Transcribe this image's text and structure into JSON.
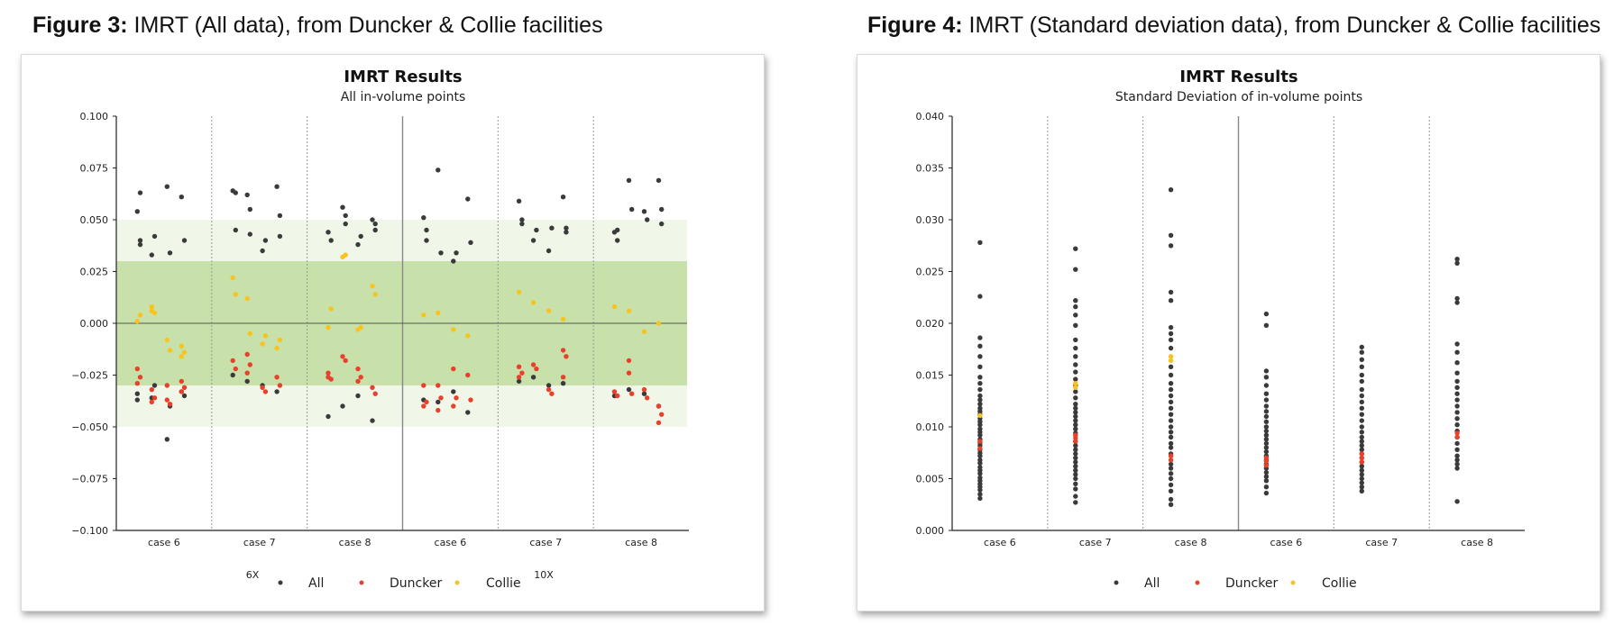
{
  "figures": [
    {
      "caption_label": "Figure 3:",
      "caption_text": " IMRT (All data), from Duncker & Collie facilities",
      "chart_data": {
        "type": "scatter",
        "title": "IMRT Results",
        "subtitle": "All in-volume points",
        "ylim": [
          -0.1,
          0.1
        ],
        "yticks": [
          -0.1,
          -0.075,
          -0.05,
          -0.025,
          0.0,
          0.025,
          0.05,
          0.075,
          0.1
        ],
        "ytick_labels": [
          "−0.100",
          "−0.075",
          "−0.050",
          "−0.025",
          "0.000",
          "0.025",
          "0.050",
          "0.075",
          "0.100"
        ],
        "categories": [
          "case 6",
          "case 7",
          "case 8",
          "case 6",
          "case 7",
          "case 8"
        ],
        "groups": [
          "6X",
          "10X"
        ],
        "bands": [
          {
            "from": -0.05,
            "to": 0.05,
            "color": "#f0f7e8"
          },
          {
            "from": -0.03,
            "to": 0.03,
            "color": "#c8e1ab"
          }
        ],
        "zero_line": true,
        "legend": [
          {
            "name": "All",
            "color": "#3a3a3a"
          },
          {
            "name": "Duncker",
            "color": "#e8402a"
          },
          {
            "name": "Collie",
            "color": "#f8c31e"
          }
        ],
        "cases": [
          {
            "all": [
              [
                -0.034,
                0.04,
                0.054,
                0.063,
                -0.037,
                0.038
              ],
              [
                -0.036,
                0.042,
                0.033,
                -0.03
              ],
              [
                -0.056,
                0.034,
                0.066,
                -0.04
              ],
              [
                -0.033,
                0.04,
                0.061,
                -0.035
              ]
            ],
            "duncker": [
              [
                -0.022,
                -0.026,
                -0.029
              ],
              [
                -0.032,
                -0.036,
                -0.038
              ],
              [
                -0.037,
                -0.039,
                -0.03
              ],
              [
                -0.028,
                -0.031,
                -0.033
              ]
            ],
            "collie": [
              [
                0.001,
                0.004
              ],
              [
                0.006,
                0.005,
                0.008
              ],
              [
                -0.008,
                -0.013
              ],
              [
                -0.011,
                -0.014,
                -0.016
              ]
            ]
          },
          {
            "all": [
              [
                -0.025,
                0.045,
                0.064,
                0.063
              ],
              [
                -0.028,
                0.043,
                0.062,
                0.055
              ],
              [
                -0.03,
                0.04,
                0.035
              ],
              [
                -0.033,
                0.042,
                0.066,
                0.052
              ]
            ],
            "duncker": [
              [
                -0.018,
                -0.022
              ],
              [
                -0.015,
                -0.02,
                -0.024
              ],
              [
                -0.031,
                -0.033
              ],
              [
                -0.026,
                -0.03
              ]
            ],
            "collie": [
              [
                0.022,
                0.014
              ],
              [
                0.012,
                -0.005
              ],
              [
                -0.01,
                -0.006
              ],
              [
                -0.012,
                -0.008
              ]
            ]
          },
          {
            "all": [
              [
                -0.045,
                0.04,
                0.044
              ],
              [
                -0.04,
                0.048,
                0.056,
                0.052
              ],
              [
                -0.035,
                0.042,
                0.038
              ],
              [
                -0.047,
                0.045,
                0.05,
                0.048
              ]
            ],
            "duncker": [
              [
                -0.024,
                -0.027,
                -0.026
              ],
              [
                -0.016,
                -0.018
              ],
              [
                -0.022,
                -0.026,
                -0.028
              ],
              [
                -0.031,
                -0.034
              ]
            ],
            "collie": [
              [
                -0.002,
                0.007
              ],
              [
                0.032,
                0.033
              ],
              [
                -0.003,
                -0.002
              ],
              [
                0.018,
                0.014
              ]
            ]
          },
          {
            "all": [
              [
                -0.037,
                0.04,
                0.051,
                0.045
              ],
              [
                -0.038,
                0.034,
                0.074
              ],
              [
                -0.033,
                0.034,
                0.03
              ],
              [
                -0.043,
                0.039,
                0.06
              ]
            ],
            "duncker": [
              [
                -0.03,
                -0.038,
                -0.04
              ],
              [
                -0.03,
                -0.036,
                -0.042
              ],
              [
                -0.022,
                -0.036,
                -0.04
              ],
              [
                -0.025,
                -0.037
              ]
            ],
            "collie": [
              [
                0.004
              ],
              [
                0.005
              ],
              [
                -0.003
              ],
              [
                -0.006
              ]
            ]
          },
          {
            "all": [
              [
                -0.028,
                0.05,
                0.059,
                0.048
              ],
              [
                -0.026,
                0.045,
                0.04
              ],
              [
                -0.03,
                0.046,
                0.035
              ],
              [
                -0.029,
                0.046,
                0.061,
                0.044
              ]
            ],
            "duncker": [
              [
                -0.021,
                -0.024,
                -0.026
              ],
              [
                -0.02,
                -0.022
              ],
              [
                -0.032,
                -0.034
              ],
              [
                -0.013,
                -0.016,
                -0.026
              ]
            ],
            "collie": [
              [
                0.015
              ],
              [
                0.01
              ],
              [
                0.006
              ],
              [
                0.002
              ]
            ]
          },
          {
            "all": [
              [
                -0.035,
                0.04,
                0.044,
                0.045
              ],
              [
                -0.032,
                0.055,
                0.069
              ],
              [
                -0.034,
                0.05,
                0.054
              ],
              [
                -0.04,
                0.055,
                0.069,
                0.048
              ]
            ],
            "duncker": [
              [
                -0.033,
                -0.035
              ],
              [
                -0.018,
                -0.034,
                -0.024
              ],
              [
                -0.032,
                -0.036
              ],
              [
                -0.04,
                -0.044,
                -0.048
              ]
            ],
            "collie": [
              [
                0.008
              ],
              [
                0.006
              ],
              [
                -0.004
              ],
              [
                0.0
              ]
            ]
          }
        ]
      }
    },
    {
      "caption_label": "Figure 4:",
      "caption_text": " IMRT (Standard deviation data), from Duncker & Collie facilities",
      "chart_data": {
        "type": "scatter",
        "title": "IMRT Results",
        "subtitle": "Standard Deviation of in-volume points",
        "ylim": [
          0.0,
          0.04
        ],
        "yticks": [
          0.0,
          0.005,
          0.01,
          0.015,
          0.02,
          0.025,
          0.03,
          0.035,
          0.04
        ],
        "ytick_labels": [
          "0.000",
          "0.005",
          "0.010",
          "0.015",
          "0.020",
          "0.025",
          "0.030",
          "0.035",
          "0.040"
        ],
        "categories": [
          "case 6",
          "case 7",
          "case 8",
          "case 6",
          "case 7",
          "case 8"
        ],
        "legend": [
          {
            "name": "All",
            "color": "#3a3a3a"
          },
          {
            "name": "Duncker",
            "color": "#e8402a"
          },
          {
            "name": "Collie",
            "color": "#f8c31e"
          }
        ],
        "cases": [
          {
            "all": [
              0.0031,
              0.0035,
              0.0039,
              0.0042,
              0.0045,
              0.0048,
              0.0051,
              0.0055,
              0.0058,
              0.0061,
              0.0065,
              0.0068,
              0.0072,
              0.0075,
              0.0078,
              0.0082,
              0.0085,
              0.0088,
              0.0092,
              0.0095,
              0.0098,
              0.0102,
              0.0105,
              0.0108,
              0.0112,
              0.0115,
              0.0118,
              0.0122,
              0.0126,
              0.013,
              0.0136,
              0.0142,
              0.0148,
              0.0158,
              0.0168,
              0.0178,
              0.0186,
              0.0226,
              0.0278
            ],
            "duncker": [
              0.0079,
              0.0086
            ],
            "collie": [
              0.0111
            ]
          },
          {
            "all": [
              0.0027,
              0.0033,
              0.004,
              0.0045,
              0.005,
              0.0054,
              0.0058,
              0.0062,
              0.0066,
              0.007,
              0.0074,
              0.0078,
              0.0082,
              0.0086,
              0.0094,
              0.0098,
              0.0102,
              0.0106,
              0.011,
              0.0114,
              0.0118,
              0.0122,
              0.0128,
              0.0134,
              0.014,
              0.0146,
              0.0153,
              0.016,
              0.0168,
              0.0176,
              0.0184,
              0.0198,
              0.0208,
              0.0216,
              0.0222,
              0.0252,
              0.0272
            ],
            "duncker": [
              0.0086,
              0.0089,
              0.0092
            ],
            "collie": [
              0.0138,
              0.0142
            ]
          },
          {
            "all": [
              0.0025,
              0.003,
              0.0038,
              0.0044,
              0.005,
              0.0055,
              0.006,
              0.0064,
              0.0074,
              0.008,
              0.0084,
              0.009,
              0.0095,
              0.01,
              0.0106,
              0.0112,
              0.0118,
              0.0124,
              0.013,
              0.0136,
              0.0142,
              0.015,
              0.0158,
              0.0176,
              0.0184,
              0.019,
              0.0196,
              0.0222,
              0.023,
              0.0275,
              0.0285,
              0.0329
            ],
            "duncker": [
              0.0068,
              0.0072
            ],
            "collie": [
              0.0164,
              0.0168
            ]
          },
          {
            "all": [
              0.0036,
              0.0042,
              0.0048,
              0.0052,
              0.0056,
              0.006,
              0.0064,
              0.0068,
              0.0072,
              0.0076,
              0.008,
              0.0084,
              0.0088,
              0.0092,
              0.0096,
              0.01,
              0.0105,
              0.011,
              0.0115,
              0.012,
              0.0126,
              0.0132,
              0.014,
              0.0148,
              0.0154,
              0.0198,
              0.0209
            ],
            "duncker": [
              0.0063,
              0.0067,
              0.007
            ],
            "collie": []
          },
          {
            "all": [
              0.0038,
              0.0042,
              0.0046,
              0.005,
              0.0054,
              0.0058,
              0.0062,
              0.0066,
              0.007,
              0.0074,
              0.0078,
              0.0082,
              0.0086,
              0.009,
              0.0095,
              0.01,
              0.0106,
              0.0112,
              0.0118,
              0.0124,
              0.013,
              0.0136,
              0.0144,
              0.015,
              0.0158,
              0.0165,
              0.0172,
              0.0177
            ],
            "duncker": [
              0.0066,
              0.007,
              0.0074
            ],
            "collie": []
          },
          {
            "all": [
              0.0028,
              0.006,
              0.0064,
              0.0068,
              0.0072,
              0.0078,
              0.0084,
              0.009,
              0.0096,
              0.0102,
              0.0108,
              0.0114,
              0.012,
              0.0126,
              0.0132,
              0.0138,
              0.0144,
              0.0152,
              0.0162,
              0.0172,
              0.018,
              0.022,
              0.0224,
              0.0258,
              0.0262
            ],
            "duncker": [
              0.009,
              0.0094
            ],
            "collie": []
          }
        ]
      }
    }
  ]
}
